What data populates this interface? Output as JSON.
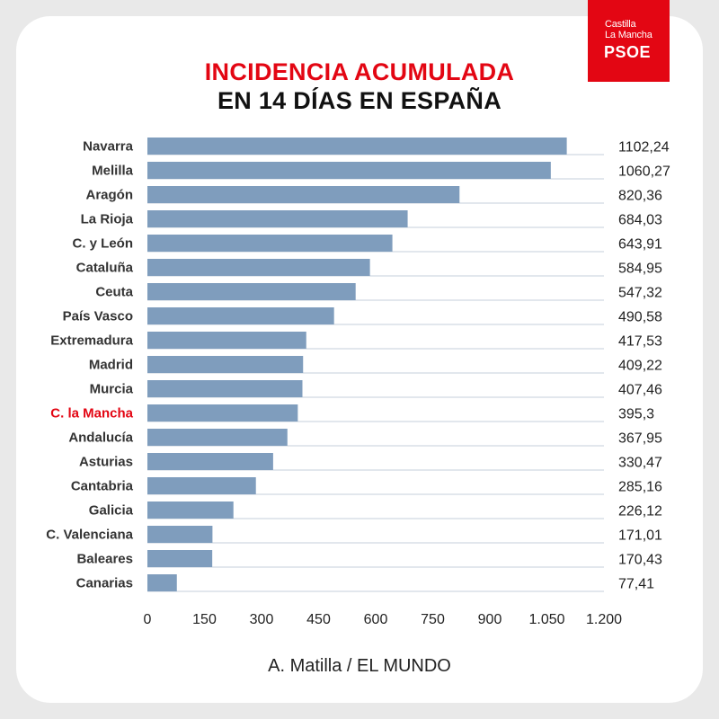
{
  "title_line1": "INCIDENCIA ACUMULADA",
  "title_line2": "EN 14 DÍAS EN ESPAÑA",
  "logo": {
    "line1": "Castilla",
    "line2": "La Mancha",
    "line3": "PSOE",
    "color": "#e30613"
  },
  "credit": "A. Matilla / EL MUNDO",
  "colors": {
    "bar": "#7f9dbd",
    "highlight_label": "#e30613",
    "label": "#333333",
    "value": "#222222",
    "gridline": "#c5cfdb"
  },
  "chart_data": {
    "type": "bar",
    "orientation": "horizontal",
    "categories": [
      "Navarra",
      "Melilla",
      "Aragón",
      "La Rioja",
      "C. y León",
      "Cataluña",
      "Ceuta",
      "País Vasco",
      "Extremadura",
      "Madrid",
      "Murcia",
      "C. la Mancha",
      "Andalucía",
      "Asturias",
      "Cantabria",
      "Galicia",
      "C. Valenciana",
      "Baleares",
      "Canarias"
    ],
    "values": [
      1102.24,
      1060.27,
      820.36,
      684.03,
      643.91,
      584.95,
      547.32,
      490.58,
      417.53,
      409.22,
      407.46,
      395.3,
      367.95,
      330.47,
      285.16,
      226.12,
      171.01,
      170.43,
      77.41
    ],
    "value_labels": [
      "1102,24",
      "1060,27",
      "820,36",
      "684,03",
      "643,91",
      "584,95",
      "547,32",
      "490,58",
      "417,53",
      "409,22",
      "407,46",
      "395,3",
      "367,95",
      "330,47",
      "285,16",
      "226,12",
      "171,01",
      "170,43",
      "77,41"
    ],
    "highlight_category": "C. la Mancha",
    "xlim": [
      0,
      1200
    ],
    "xticks": [
      0,
      150,
      300,
      450,
      600,
      750,
      900,
      1050,
      1200
    ],
    "xtick_labels": [
      "0",
      "150",
      "300",
      "450",
      "600",
      "750",
      "900",
      "1.050",
      "1.200"
    ],
    "xlabel": "",
    "ylabel": "",
    "grid": "horizontal row lines",
    "legend": "none"
  }
}
